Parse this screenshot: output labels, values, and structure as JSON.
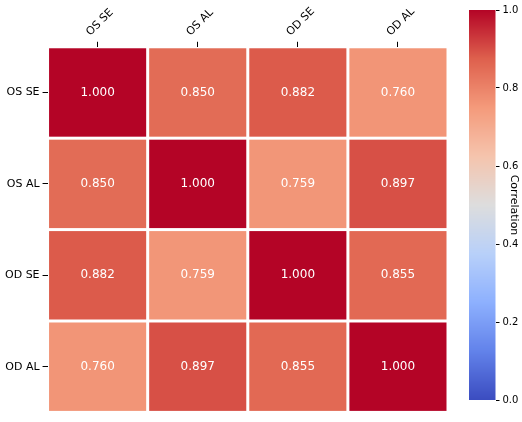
{
  "chart_data": {
    "type": "heatmap",
    "x_categories": [
      "OS SE",
      "OS AL",
      "OD SE",
      "OD AL"
    ],
    "y_categories": [
      "OS SE",
      "OS AL",
      "OD SE",
      "OD AL"
    ],
    "cells": [
      [
        1.0,
        0.85,
        0.882,
        0.76
      ],
      [
        0.85,
        1.0,
        0.759,
        0.897
      ],
      [
        0.882,
        0.759,
        1.0,
        0.855
      ],
      [
        0.76,
        0.897,
        0.855,
        1.0
      ]
    ],
    "value_labels": [
      [
        "1.000",
        "0.850",
        "0.882",
        "0.760"
      ],
      [
        "0.850",
        "1.000",
        "0.759",
        "0.897"
      ],
      [
        "0.882",
        "0.759",
        "1.000",
        "0.855"
      ],
      [
        "0.760",
        "0.897",
        "0.855",
        "1.000"
      ]
    ],
    "data_labels": true,
    "colorbar": {
      "label": "Correlation",
      "range": [
        0,
        1
      ],
      "ticks": [
        {
          "value": 0,
          "label": "0.0"
        },
        {
          "value": 0.2,
          "label": "0.2"
        },
        {
          "value": 0.4,
          "label": "0.4"
        },
        {
          "value": 0.6,
          "label": "0.6"
        },
        {
          "value": 0.8,
          "label": "0.8"
        },
        {
          "value": 1,
          "label": "1.0"
        }
      ]
    }
  }
}
